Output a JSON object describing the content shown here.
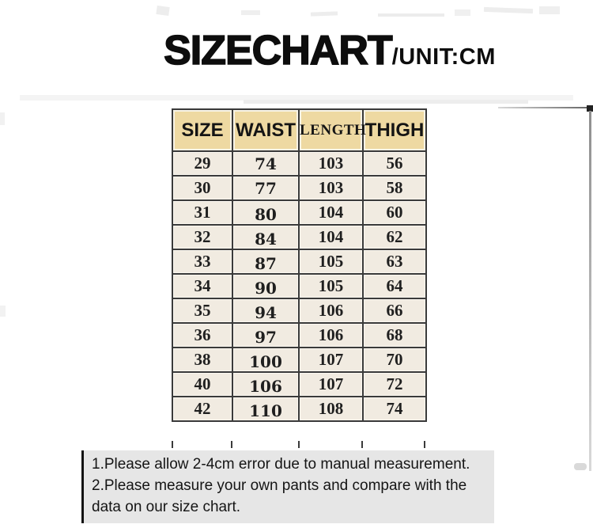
{
  "header": {
    "title": "SIZECHART",
    "unit": "/UNIT:CM"
  },
  "chart_data": {
    "type": "table",
    "title": "SIZECHART /UNIT:CM",
    "columns": [
      "SIZE",
      "WAIST",
      "LENGTH",
      "THIGH"
    ],
    "rows": [
      [
        29,
        74,
        103,
        56
      ],
      [
        30,
        77,
        103,
        58
      ],
      [
        31,
        80,
        104,
        60
      ],
      [
        32,
        84,
        104,
        62
      ],
      [
        33,
        87,
        105,
        63
      ],
      [
        34,
        90,
        105,
        64
      ],
      [
        35,
        94,
        106,
        66
      ],
      [
        36,
        97,
        106,
        68
      ],
      [
        38,
        100,
        107,
        70
      ],
      [
        40,
        106,
        107,
        72
      ],
      [
        42,
        110,
        108,
        74
      ]
    ]
  },
  "notes": [
    "1.Please allow 2-4cm error due to manual measurement.",
    "2.Please measure your own pants and compare with the data on our size chart."
  ],
  "colors": {
    "header_bg": "#eed9a2",
    "cell_bg": "#f1ebe1",
    "table_border": "#3a3a3a",
    "notes_bg": "#e6e6e6",
    "text": "#0d0d0d"
  }
}
